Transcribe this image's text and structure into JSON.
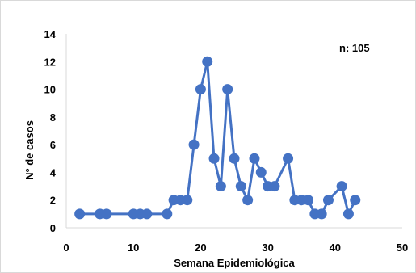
{
  "chart_data": {
    "type": "line",
    "title": "",
    "xlabel": "Semana Epidemiológica",
    "ylabel": "N° de casos",
    "xlim": [
      0,
      50
    ],
    "ylim": [
      0,
      14
    ],
    "xticks": [
      0,
      10,
      20,
      30,
      40,
      50
    ],
    "yticks": [
      0,
      2,
      4,
      6,
      8,
      10,
      12,
      14
    ],
    "grid": false,
    "annotation": "n: 105",
    "color": "#4472c4",
    "series": [
      {
        "x": [
          2,
          5,
          6,
          10,
          11,
          12,
          15,
          16,
          17,
          18,
          19,
          20,
          21,
          22,
          23,
          24,
          25,
          26,
          27,
          28,
          29,
          30,
          31,
          33,
          34,
          35,
          36,
          37,
          38,
          39,
          41,
          42,
          43
        ],
        "y": [
          1,
          1,
          1,
          1,
          1,
          1,
          1,
          2,
          2,
          2,
          6,
          10,
          12,
          5,
          3,
          10,
          5,
          3,
          2,
          5,
          4,
          3,
          3,
          5,
          2,
          2,
          2,
          1,
          1,
          2,
          3,
          1,
          2
        ]
      }
    ]
  }
}
